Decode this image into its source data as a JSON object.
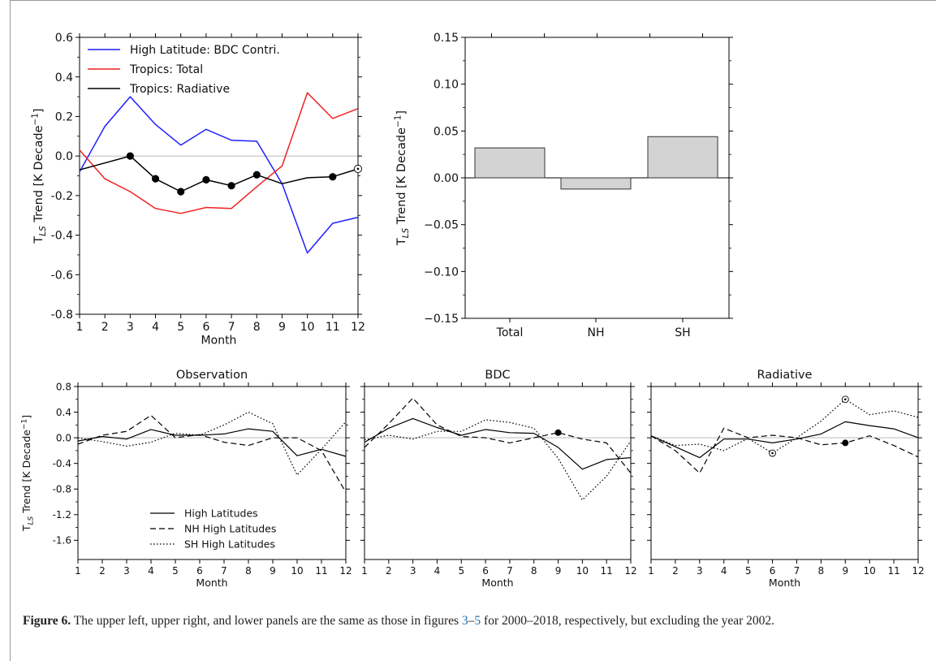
{
  "chart_data": [
    {
      "id": "upper-left",
      "type": "line",
      "ylabel": "T_LS Trend [K Decade^-1]",
      "xlabel": "Month",
      "ylim": [
        -0.8,
        0.6
      ],
      "xlim": [
        1,
        12
      ],
      "yticks": [
        -0.8,
        -0.6,
        -0.4,
        -0.2,
        0.0,
        0.2,
        0.4,
        0.6
      ],
      "ytick_labels": [
        "-0.8",
        "-0.6",
        "-0.4",
        "-0.2",
        "0.0",
        "0.2",
        "0.4",
        "0.6"
      ],
      "xticks": [
        1,
        2,
        3,
        4,
        5,
        6,
        7,
        8,
        9,
        10,
        11,
        12
      ],
      "zero_line": true,
      "legend_position": "top-left",
      "series": [
        {
          "name": "High Latitude: BDC Contri.",
          "color": "#1f1fff",
          "dash": "solid",
          "x": [
            1,
            2,
            3,
            4,
            5,
            6,
            7,
            8,
            9,
            10,
            11,
            12
          ],
          "values": [
            -0.08,
            0.15,
            0.3,
            0.16,
            0.055,
            0.135,
            0.08,
            0.075,
            -0.14,
            -0.49,
            -0.34,
            -0.31
          ]
        },
        {
          "name": "Tropics: Total",
          "color": "#ee2222",
          "dash": "solid",
          "x": [
            1,
            2,
            3,
            4,
            5,
            6,
            7,
            8,
            9,
            10,
            11,
            12
          ],
          "values": [
            0.03,
            -0.115,
            -0.18,
            -0.265,
            -0.29,
            -0.26,
            -0.265,
            -0.155,
            -0.05,
            0.32,
            0.19,
            0.24
          ]
        },
        {
          "name": "Tropics: Radiative",
          "color": "#000000",
          "dash": "solid",
          "x": [
            1,
            2,
            3,
            4,
            5,
            6,
            7,
            8,
            9,
            10,
            11,
            12
          ],
          "values": [
            -0.07,
            -0.035,
            0.0,
            -0.115,
            -0.18,
            -0.12,
            -0.15,
            -0.095,
            -0.14,
            -0.11,
            -0.105,
            -0.065
          ],
          "filled_markers": [
            3,
            4,
            5,
            6,
            7,
            8,
            11
          ],
          "open_markers": [
            12
          ]
        }
      ]
    },
    {
      "id": "upper-right",
      "type": "bar",
      "ylabel": "T_LS Trend [K Decade^-1]",
      "ylim": [
        -0.15,
        0.15
      ],
      "yticks": [
        -0.15,
        -0.1,
        -0.05,
        0.0,
        0.05,
        0.1,
        0.15
      ],
      "ytick_labels": [
        "−0.15",
        "−0.10",
        "−0.05",
        "0.00",
        "0.05",
        "0.10",
        "0.15"
      ],
      "categories": [
        "Total",
        "NH",
        "SH"
      ],
      "values": [
        0.032,
        -0.012,
        0.044
      ],
      "bar_color": "#d3d3d3",
      "zero_line": true
    },
    {
      "id": "lower-observation",
      "type": "line",
      "title": "Observation",
      "ylabel": "T_LS Trend [K Decade^-1]",
      "xlabel": "Month",
      "ylim": [
        -1.9,
        0.8
      ],
      "yticks": [
        -1.6,
        -1.2,
        -0.8,
        -0.4,
        0.0,
        0.4,
        0.8
      ],
      "ytick_labels": [
        "-1.6",
        "-1.2",
        "-0.8",
        "-0.4",
        "0.0",
        "0.4",
        "0.8"
      ],
      "xticks": [
        1,
        2,
        3,
        4,
        5,
        6,
        7,
        8,
        9,
        10,
        11,
        12
      ],
      "zero_line": true,
      "legend_position": "lower-left",
      "series": [
        {
          "name": "High Latitudes",
          "dash": "solid",
          "x": [
            1,
            2,
            3,
            4,
            5,
            6,
            7,
            8,
            9,
            10,
            11,
            12
          ],
          "values": [
            -0.05,
            0.02,
            -0.02,
            0.13,
            0.04,
            0.04,
            0.06,
            0.14,
            0.1,
            -0.28,
            -0.18,
            -0.29
          ]
        },
        {
          "name": "NH High Latitudes",
          "dash": "dashed",
          "x": [
            1,
            2,
            3,
            4,
            5,
            6,
            7,
            8,
            9,
            10,
            11,
            12
          ],
          "values": [
            -0.1,
            0.04,
            0.1,
            0.35,
            0.0,
            0.05,
            -0.07,
            -0.12,
            0.0,
            0.0,
            -0.2,
            -0.85
          ]
        },
        {
          "name": "SH High Latitudes",
          "dash": "dotted",
          "x": [
            1,
            2,
            3,
            4,
            5,
            6,
            7,
            8,
            9,
            10,
            11,
            12
          ],
          "values": [
            0.0,
            -0.06,
            -0.13,
            -0.07,
            0.07,
            0.04,
            0.2,
            0.4,
            0.22,
            -0.58,
            -0.18,
            0.25
          ]
        }
      ]
    },
    {
      "id": "lower-bdc",
      "type": "line",
      "title": "BDC",
      "xlabel": "Month",
      "ylim": [
        -1.9,
        0.8
      ],
      "xticks": [
        1,
        2,
        3,
        4,
        5,
        6,
        7,
        8,
        9,
        10,
        11,
        12
      ],
      "zero_line": true,
      "series": [
        {
          "name": "High Latitudes",
          "dash": "solid",
          "x": [
            1,
            2,
            3,
            4,
            5,
            6,
            7,
            8,
            9,
            10,
            11,
            12
          ],
          "values": [
            -0.07,
            0.15,
            0.3,
            0.16,
            0.04,
            0.13,
            0.08,
            0.07,
            -0.15,
            -0.49,
            -0.34,
            -0.31
          ],
          "filled_markers": [],
          "open_markers": []
        },
        {
          "name": "NH High Latitudes",
          "dash": "dashed",
          "x": [
            1,
            2,
            3,
            4,
            5,
            6,
            7,
            8,
            9,
            10,
            11,
            12
          ],
          "values": [
            -0.15,
            0.22,
            0.62,
            0.2,
            0.02,
            0.0,
            -0.08,
            0.0,
            0.08,
            -0.02,
            -0.08,
            -0.55
          ],
          "filled_markers": [
            9
          ],
          "open_markers": []
        },
        {
          "name": "SH High Latitudes",
          "dash": "dotted",
          "x": [
            1,
            2,
            3,
            4,
            5,
            6,
            7,
            8,
            9,
            10,
            11,
            12
          ],
          "values": [
            -0.03,
            0.04,
            -0.02,
            0.1,
            0.1,
            0.28,
            0.24,
            0.15,
            -0.32,
            -0.97,
            -0.6,
            -0.05
          ],
          "filled_markers": [],
          "open_markers": []
        }
      ]
    },
    {
      "id": "lower-radiative",
      "type": "line",
      "title": "Radiative",
      "xlabel": "Month",
      "ylim": [
        -1.9,
        0.8
      ],
      "xticks": [
        1,
        2,
        3,
        4,
        5,
        6,
        7,
        8,
        9,
        10,
        11,
        12
      ],
      "zero_line": true,
      "series": [
        {
          "name": "High Latitudes",
          "dash": "solid",
          "x": [
            1,
            2,
            3,
            4,
            5,
            6,
            7,
            8,
            9,
            10,
            11,
            12
          ],
          "values": [
            0.03,
            -0.14,
            -0.31,
            -0.02,
            -0.02,
            -0.08,
            -0.02,
            0.06,
            0.25,
            0.19,
            0.14,
            0.0
          ],
          "filled_markers": [],
          "open_markers": []
        },
        {
          "name": "NH High Latitudes",
          "dash": "dashed",
          "x": [
            1,
            2,
            3,
            4,
            5,
            6,
            7,
            8,
            9,
            10,
            11,
            12
          ],
          "values": [
            0.03,
            -0.2,
            -0.55,
            0.15,
            0.0,
            0.04,
            0.0,
            -0.11,
            -0.08,
            0.03,
            -0.12,
            -0.3
          ],
          "filled_markers": [
            9
          ],
          "open_markers": []
        },
        {
          "name": "SH High Latitudes",
          "dash": "dotted",
          "x": [
            1,
            2,
            3,
            4,
            5,
            6,
            7,
            8,
            9,
            10,
            11,
            12
          ],
          "values": [
            0.03,
            -0.12,
            -0.1,
            -0.2,
            -0.01,
            -0.24,
            0.0,
            0.26,
            0.6,
            0.36,
            0.42,
            0.32
          ],
          "filled_markers": [],
          "open_markers": [
            6,
            9
          ]
        }
      ]
    }
  ],
  "caption": {
    "label": "Figure 6.",
    "text_before": " The upper left, upper right, and lower panels are the same as those in figures ",
    "ref_start": "3",
    "dash": "–",
    "ref_end": "5",
    "text_after": " for 2000–2018, respectively, but excluding the year 2002."
  }
}
